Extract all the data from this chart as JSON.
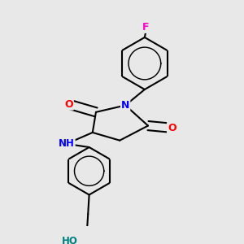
{
  "background_color": "#e8e8e8",
  "bond_color": "#000000",
  "bond_width": 1.5,
  "N_color": "#0000ff",
  "O_color": "#ff0000",
  "F_color": "#ff00cc",
  "HO_color": "#008080",
  "NH_color": "#0000ff",
  "figsize": [
    3.0,
    3.0
  ],
  "dpi": 100,
  "xlim": [
    0.0,
    1.0
  ],
  "ylim": [
    0.0,
    1.0
  ]
}
